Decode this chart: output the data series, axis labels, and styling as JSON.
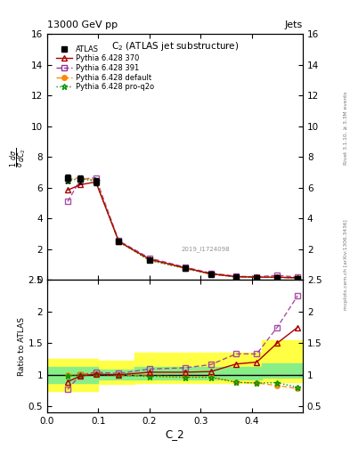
{
  "title_top": "13000 GeV pp",
  "title_right": "Jets",
  "plot_title": "C$_2$ (ATLAS jet substructure)",
  "xlabel": "C_2",
  "watermark": "2019_I1724098",
  "rivet_label": "Rivet 3.1.10, ≥ 3.3M events",
  "arxiv_label": "mcplots.cern.ch [arXiv:1306.3436]",
  "x_main": [
    0.04,
    0.065,
    0.095,
    0.14,
    0.2,
    0.27,
    0.32,
    0.37,
    0.41,
    0.45,
    0.49
  ],
  "atlas_y": [
    6.6,
    6.55,
    6.4,
    2.5,
    1.3,
    0.75,
    0.38,
    0.18,
    0.15,
    0.12,
    0.08
  ],
  "atlas_err": [
    0.25,
    0.25,
    0.25,
    0.12,
    0.07,
    0.045,
    0.025,
    0.015,
    0.013,
    0.01,
    0.008
  ],
  "p370_y": [
    5.85,
    6.2,
    6.38,
    2.5,
    1.35,
    0.78,
    0.4,
    0.21,
    0.18,
    0.18,
    0.14
  ],
  "p391_y": [
    5.1,
    6.55,
    6.65,
    2.55,
    1.42,
    0.83,
    0.44,
    0.24,
    0.2,
    0.3,
    0.18
  ],
  "pdef_y": [
    6.55,
    6.65,
    6.48,
    2.5,
    1.28,
    0.75,
    0.37,
    0.19,
    0.17,
    0.17,
    0.11
  ],
  "pq2o_y": [
    6.48,
    6.58,
    6.43,
    2.48,
    1.27,
    0.74,
    0.37,
    0.185,
    0.17,
    0.17,
    0.11
  ],
  "ratio_p370": [
    0.89,
    0.98,
    1.01,
    1.0,
    1.04,
    1.04,
    1.05,
    1.17,
    1.2,
    1.5,
    1.75
  ],
  "ratio_p391": [
    0.77,
    1.0,
    1.04,
    1.02,
    1.09,
    1.11,
    1.16,
    1.33,
    1.33,
    1.75,
    2.25
  ],
  "ratio_pdef": [
    0.99,
    1.01,
    1.01,
    1.0,
    0.98,
    0.97,
    0.97,
    0.88,
    0.87,
    0.83,
    0.78
  ],
  "ratio_pq2o": [
    0.98,
    1.0,
    1.005,
    0.99,
    0.975,
    0.96,
    0.96,
    0.88,
    0.87,
    0.875,
    0.8
  ],
  "band_x_yellow": [
    0.0,
    0.06,
    0.1,
    0.17,
    0.42,
    0.5
  ],
  "band_yellow_lo": [
    0.75,
    0.75,
    0.85,
    0.87,
    0.88,
    0.88
  ],
  "band_yellow_hi": [
    1.25,
    1.25,
    1.22,
    1.35,
    1.55,
    1.55
  ],
  "band_x_green": [
    0.0,
    0.06,
    0.1,
    0.17,
    0.42,
    0.5
  ],
  "band_green_lo": [
    0.87,
    0.87,
    0.92,
    0.93,
    0.95,
    0.95
  ],
  "band_green_hi": [
    1.13,
    1.13,
    1.08,
    1.13,
    1.18,
    1.18
  ],
  "color_atlas": "#000000",
  "color_p370": "#aa0000",
  "color_p391": "#993399",
  "color_pdef": "#ff8800",
  "color_pq2o": "#009900",
  "color_yellow": "#ffff44",
  "color_green": "#88ee88",
  "ylim_main": [
    0,
    16
  ],
  "ylim_ratio": [
    0.4,
    2.5
  ],
  "xlim": [
    0.0,
    0.5
  ],
  "xticks": [
    0.0,
    0.1,
    0.2,
    0.3,
    0.4
  ]
}
